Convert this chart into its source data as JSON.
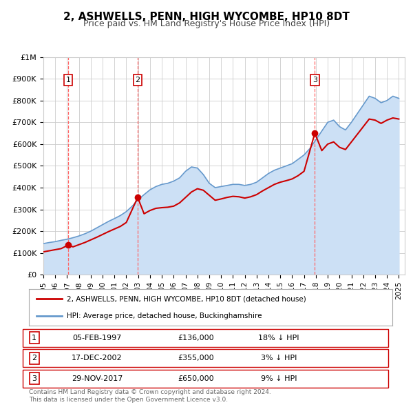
{
  "title": "2, ASHWELLS, PENN, HIGH WYCOMBE, HP10 8DT",
  "subtitle": "Price paid vs. HM Land Registry's House Price Index (HPI)",
  "legend_line1": "2, ASHWELLS, PENN, HIGH WYCOMBE, HP10 8DT (detached house)",
  "legend_line2": "HPI: Average price, detached house, Buckinghamshire",
  "transactions": [
    {
      "num": 1,
      "date": "05-FEB-1997",
      "year": 1997.09,
      "price": 136000,
      "pct": "18% ↓ HPI"
    },
    {
      "num": 2,
      "date": "17-DEC-2002",
      "year": 2002.96,
      "price": 355000,
      "pct": "3% ↓ HPI"
    },
    {
      "num": 3,
      "date": "29-NOV-2017",
      "year": 2017.91,
      "price": 650000,
      "pct": "9% ↓ HPI"
    }
  ],
  "footnote1": "Contains HM Land Registry data © Crown copyright and database right 2024.",
  "footnote2": "This data is licensed under the Open Government Licence v3.0.",
  "red_line_color": "#cc0000",
  "blue_line_color": "#6699cc",
  "blue_fill_color": "#cce0f5",
  "grid_color": "#cccccc",
  "background_color": "#ffffff",
  "vline_color": "#ff6666",
  "dot_color": "#cc0000",
  "xlim_left": 1995.0,
  "xlim_right": 2025.5,
  "ylim_bottom": 0,
  "ylim_top": 1000000,
  "yticks": [
    0,
    100000,
    200000,
    300000,
    400000,
    500000,
    600000,
    700000,
    800000,
    900000,
    1000000
  ],
  "ytick_labels": [
    "£0",
    "£100K",
    "£200K",
    "£300K",
    "£400K",
    "£500K",
    "£600K",
    "£700K",
    "£800K",
    "£900K",
    "£1M"
  ],
  "xticks": [
    1995,
    1996,
    1997,
    1998,
    1999,
    2000,
    2001,
    2002,
    2003,
    2004,
    2005,
    2006,
    2007,
    2008,
    2009,
    2010,
    2011,
    2012,
    2013,
    2014,
    2015,
    2016,
    2017,
    2018,
    2019,
    2020,
    2021,
    2022,
    2023,
    2024,
    2025
  ],
  "hpi_years": [
    1995.0,
    1995.5,
    1996.0,
    1996.5,
    1997.0,
    1997.5,
    1998.0,
    1998.5,
    1999.0,
    1999.5,
    2000.0,
    2000.5,
    2001.0,
    2001.5,
    2002.0,
    2002.5,
    2003.0,
    2003.5,
    2004.0,
    2004.5,
    2005.0,
    2005.5,
    2006.0,
    2006.5,
    2007.0,
    2007.5,
    2008.0,
    2008.5,
    2009.0,
    2009.5,
    2010.0,
    2010.5,
    2011.0,
    2011.5,
    2012.0,
    2012.5,
    2013.0,
    2013.5,
    2014.0,
    2014.5,
    2015.0,
    2015.5,
    2016.0,
    2016.5,
    2017.0,
    2017.5,
    2018.0,
    2018.5,
    2019.0,
    2019.5,
    2020.0,
    2020.5,
    2021.0,
    2021.5,
    2022.0,
    2022.5,
    2023.0,
    2023.5,
    2024.0,
    2024.5,
    2025.0
  ],
  "hpi_values": [
    143000,
    148000,
    152000,
    158000,
    163000,
    170000,
    178000,
    188000,
    200000,
    215000,
    230000,
    245000,
    258000,
    272000,
    290000,
    315000,
    345000,
    368000,
    390000,
    405000,
    415000,
    420000,
    430000,
    445000,
    475000,
    495000,
    490000,
    460000,
    420000,
    400000,
    405000,
    410000,
    415000,
    415000,
    410000,
    415000,
    425000,
    445000,
    465000,
    480000,
    490000,
    500000,
    510000,
    530000,
    550000,
    580000,
    620000,
    660000,
    700000,
    710000,
    680000,
    665000,
    700000,
    740000,
    780000,
    820000,
    810000,
    790000,
    800000,
    820000,
    810000
  ],
  "red_years": [
    1995.0,
    1995.5,
    1996.0,
    1996.5,
    1997.09,
    1997.5,
    1998.0,
    1998.5,
    1999.0,
    1999.5,
    2000.0,
    2000.5,
    2001.0,
    2001.5,
    2002.0,
    2002.96,
    2003.5,
    2004.0,
    2004.5,
    2005.0,
    2005.5,
    2006.0,
    2006.5,
    2007.0,
    2007.5,
    2008.0,
    2008.5,
    2009.0,
    2009.5,
    2010.0,
    2010.5,
    2011.0,
    2011.5,
    2012.0,
    2012.5,
    2013.0,
    2013.5,
    2014.0,
    2014.5,
    2015.0,
    2015.5,
    2016.0,
    2016.5,
    2017.0,
    2017.91,
    2018.5,
    2019.0,
    2019.5,
    2020.0,
    2020.5,
    2021.0,
    2021.5,
    2022.0,
    2022.5,
    2023.0,
    2023.5,
    2024.0,
    2024.5,
    2025.0
  ],
  "red_values": [
    105000,
    110000,
    115000,
    120000,
    136000,
    128000,
    138000,
    148000,
    160000,
    172000,
    185000,
    198000,
    210000,
    222000,
    240000,
    355000,
    280000,
    295000,
    305000,
    308000,
    310000,
    315000,
    330000,
    355000,
    380000,
    395000,
    388000,
    365000,
    342000,
    348000,
    355000,
    360000,
    358000,
    352000,
    358000,
    368000,
    385000,
    400000,
    415000,
    425000,
    432000,
    440000,
    455000,
    475000,
    650000,
    570000,
    600000,
    610000,
    585000,
    575000,
    610000,
    645000,
    680000,
    715000,
    710000,
    695000,
    710000,
    720000,
    715000
  ]
}
